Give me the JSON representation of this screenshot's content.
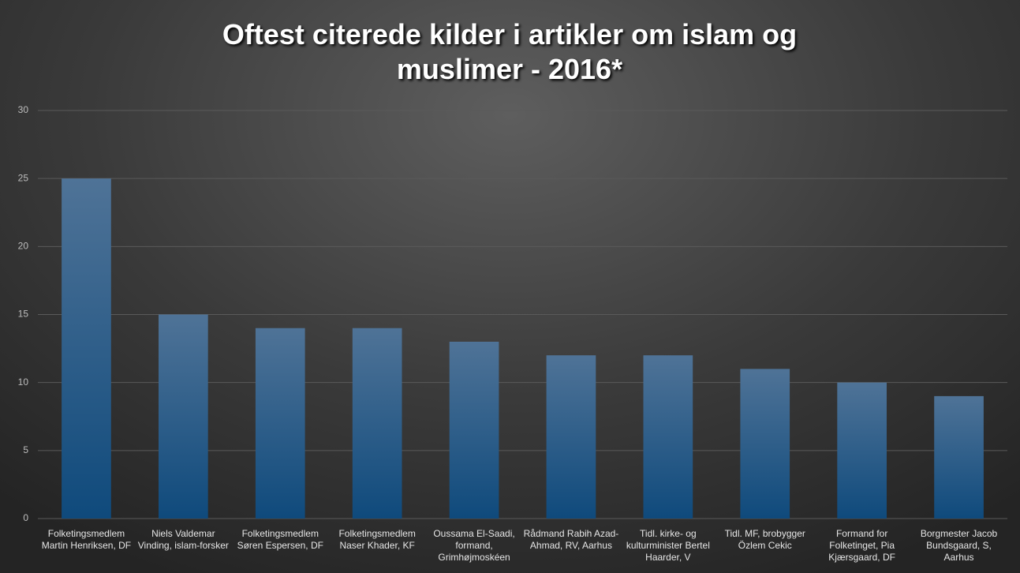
{
  "chart_data": {
    "type": "bar",
    "title": "Oftest citerede kilder i artikler om islam og muslimer - 2016*",
    "categories": [
      "Folketingsmedlem Martin Henriksen, DF",
      "Niels Valdemar Vinding, islam-forsker",
      "Folketingsmedlem Søren Espersen, DF",
      "Folketingsmedlem Naser Khader, KF",
      "Oussama El-Saadi, formand, Grimhøjmoskéen",
      "Rådmand Rabih Azad-Ahmad, RV, Aarhus",
      "Tidl. kirke- og kulturminister Bertel Haarder, V",
      "Tidl. MF, brobygger Özlem Cekic",
      "Formand for Folketinget, Pia Kjærsgaard, DF",
      "Borgmester Jacob Bundsgaard, S, Aarhus"
    ],
    "values": [
      25,
      15,
      14,
      14,
      13,
      12,
      12,
      11,
      10,
      9
    ],
    "color": "#1f5a8c",
    "ylim": [
      0,
      30
    ],
    "yticks": [
      0,
      5,
      10,
      15,
      20,
      25,
      30
    ],
    "grid": true
  }
}
